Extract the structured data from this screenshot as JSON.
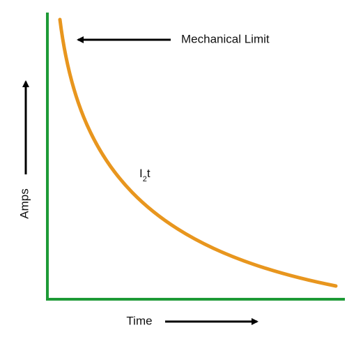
{
  "labels": {
    "mechanical_limit": "Mechanical Limit",
    "curve": {
      "base": "I",
      "sub": "2",
      "tail": "t"
    },
    "y_axis": "Amps",
    "x_axis": "Time"
  }
}
